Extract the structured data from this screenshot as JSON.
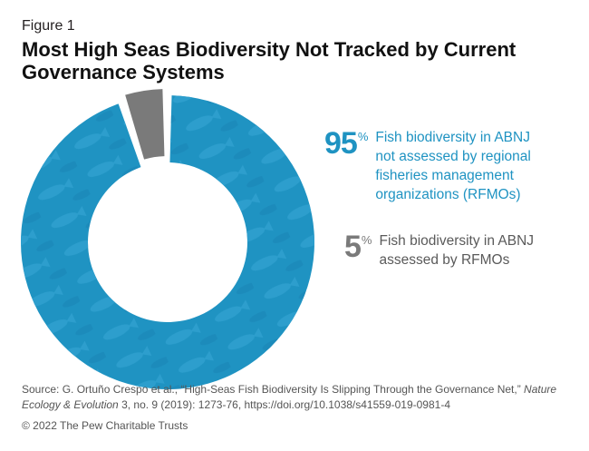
{
  "figure_label": "Figure 1",
  "title": "Most High Seas Biodiversity Not Tracked by Current Governance Systems",
  "chart_data": {
    "type": "pie",
    "donut": true,
    "title": "Most High Seas Biodiversity Not Tracked by Current Governance Systems",
    "slices": [
      {
        "label": "Fish biodiversity in ABNJ not assessed by regional fisheries management organizations (RFMOs)",
        "value": 95,
        "display": "95",
        "color": "#1f93c2"
      },
      {
        "label": "Fish biodiversity in ABNJ assessed by RFMOs",
        "value": 5,
        "display": "5",
        "color": "#7a7a7a"
      }
    ],
    "unit": "%"
  },
  "source": {
    "prefix": "Source: G. Ortuño Crespo et al., “High-Seas Fish Biodiversity Is Slipping Through the Governance Net,” ",
    "journal": "Nature Ecology & Evolution",
    "suffix": " 3, no. 9 (2019): 1273-76, https://doi.org/10.1038/s41559-019-0981-4"
  },
  "copyright": "© 2022 The Pew Charitable Trusts"
}
